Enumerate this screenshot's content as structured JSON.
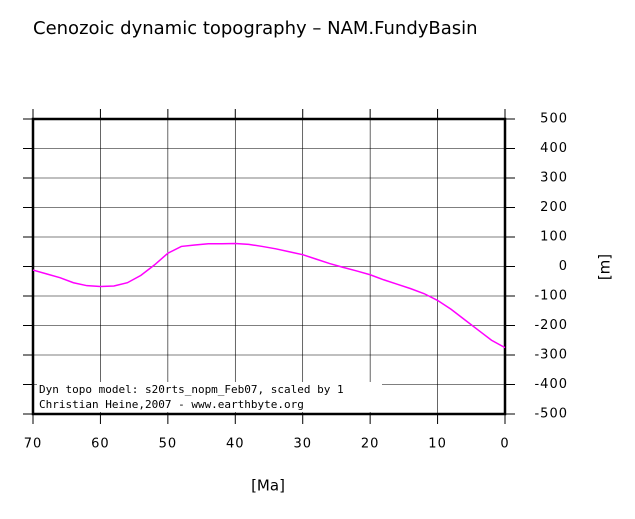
{
  "chart_data": {
    "type": "line",
    "title": "Cenozoic dynamic topography – NAM.FundyBasin",
    "x_label": "[Ma]",
    "y_label": "[m]",
    "annotations": [
      "Dyn topo model: s20rts_nopm_Feb07, scaled by 1",
      "Christian Heine,2007 - www.earthbyte.org"
    ],
    "x": [
      70,
      68,
      66,
      64,
      62,
      60,
      58,
      56,
      54,
      52,
      50,
      48,
      46,
      44,
      42,
      40,
      38,
      36,
      34,
      32,
      30,
      28,
      26,
      24,
      22,
      20,
      18,
      16,
      14,
      12,
      10,
      8,
      6,
      4,
      2,
      0
    ],
    "series": [
      {
        "name": "dynamic topography",
        "color": "#ff00ff",
        "values": [
          -12,
          -25,
          -38,
          -55,
          -65,
          -68,
          -66,
          -55,
          -30,
          5,
          45,
          68,
          73,
          77,
          77,
          78,
          75,
          68,
          60,
          50,
          40,
          25,
          10,
          -3,
          -15,
          -28,
          -45,
          -60,
          -75,
          -92,
          -115,
          -145,
          -180,
          -215,
          -250,
          -275
        ]
      }
    ],
    "xlim": [
      70,
      0
    ],
    "ylim": [
      -500,
      500
    ],
    "xticks": [
      70,
      60,
      50,
      40,
      30,
      20,
      10,
      0
    ],
    "yticks": [
      -500,
      -400,
      -300,
      -200,
      -100,
      0,
      100,
      200,
      300,
      400,
      500
    ],
    "grid": true
  }
}
